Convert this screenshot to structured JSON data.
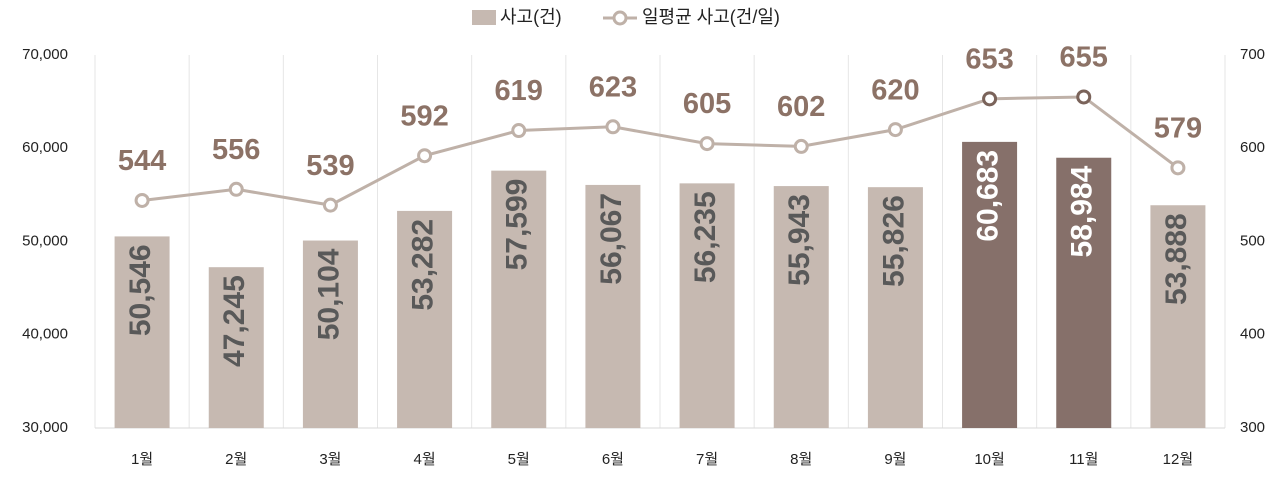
{
  "chart_data": {
    "type": "bar-line",
    "categories": [
      "1월",
      "2월",
      "3월",
      "4월",
      "5월",
      "6월",
      "7월",
      "8월",
      "9월",
      "10월",
      "11월",
      "12월"
    ],
    "series": [
      {
        "name": "사고(건)",
        "type": "bar",
        "values": [
          50546,
          47245,
          50104,
          53282,
          57599,
          56067,
          56235,
          55943,
          55826,
          60683,
          58984,
          53888
        ],
        "value_labels": [
          "50,546",
          "47,245",
          "50,104",
          "53,282",
          "57,599",
          "56,067",
          "56,235",
          "55,943",
          "55,826",
          "60,683",
          "58,984",
          "53,888"
        ],
        "colors": [
          "#c6b9b1",
          "#c6b9b1",
          "#c6b9b1",
          "#c6b9b1",
          "#c6b9b1",
          "#c6b9b1",
          "#c6b9b1",
          "#c6b9b1",
          "#c6b9b1",
          "#86706a",
          "#86706a",
          "#c6b9b1"
        ],
        "value_label_colors": [
          "#595959",
          "#595959",
          "#595959",
          "#595959",
          "#595959",
          "#595959",
          "#595959",
          "#595959",
          "#595959",
          "#ffffff",
          "#ffffff",
          "#595959"
        ]
      },
      {
        "name": "일평균 사고(건/일)",
        "type": "line",
        "axis": "y2",
        "color": "#bfb1a8",
        "values": [
          544,
          556,
          539,
          592,
          619,
          623,
          605,
          602,
          620,
          653,
          655,
          579
        ],
        "marker_colors": [
          "#bfb1a8",
          "#bfb1a8",
          "#bfb1a8",
          "#bfb1a8",
          "#bfb1a8",
          "#bfb1a8",
          "#bfb1a8",
          "#bfb1a8",
          "#bfb1a8",
          "#7a635a",
          "#7a635a",
          "#bfb1a8"
        ]
      }
    ],
    "ylim": [
      30000,
      70000
    ],
    "yticks": [
      {
        "value": 30000,
        "label": "30,000"
      },
      {
        "value": 40000,
        "label": "40,000"
      },
      {
        "value": 50000,
        "label": "50,000"
      },
      {
        "value": 60000,
        "label": "60,000"
      },
      {
        "value": 70000,
        "label": "70,000"
      }
    ],
    "y2lim": [
      300,
      700
    ],
    "y2ticks": [
      300,
      400,
      500,
      600,
      700
    ],
    "grid": true
  }
}
